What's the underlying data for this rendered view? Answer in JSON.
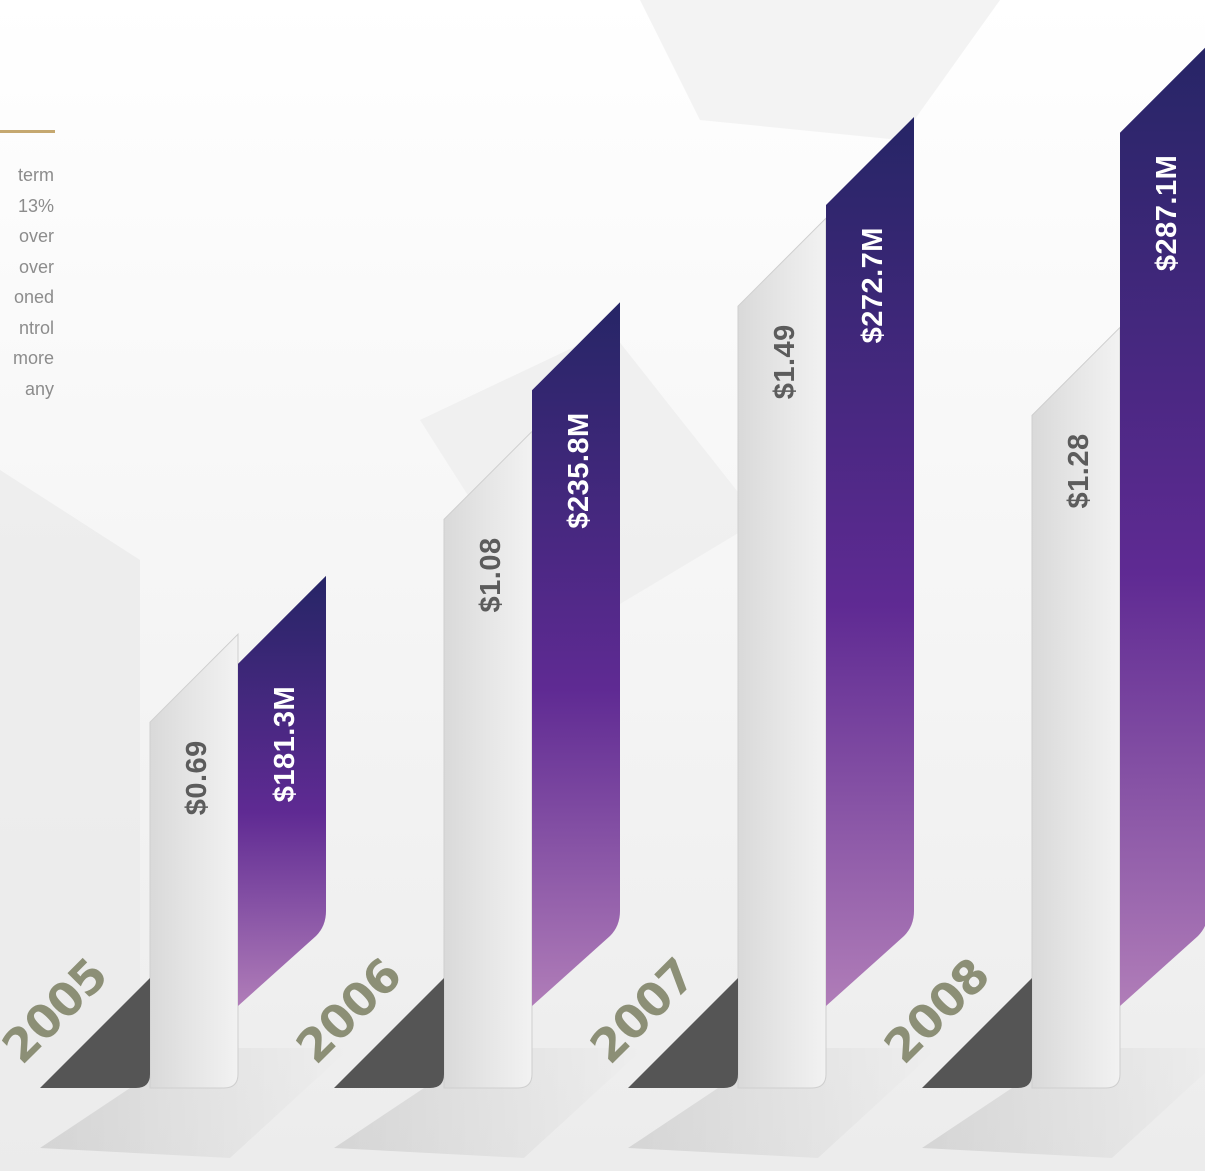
{
  "intro": {
    "lines": [
      "term",
      "13%",
      "over",
      "over",
      "oned",
      "ntrol",
      "more",
      "any"
    ]
  },
  "colors": {
    "revenue_top": "#262566",
    "revenue_mid": "#5f2a93",
    "revenue_bottom": "#b07db8",
    "eps_bar": "#e6e6e6",
    "year_text": "#8c8f76",
    "year_tab": "#555555",
    "eps_text": "#5c5c5c",
    "revenue_text": "#ffffff",
    "accent_rule": "#c5a870"
  },
  "chart_data": {
    "type": "bar",
    "categories": [
      "2005",
      "2006",
      "2007",
      "2008"
    ],
    "series": [
      {
        "values": [
          0.69,
          1.08,
          1.49,
          1.28
        ],
        "labels": [
          "$0.69",
          "$1.08",
          "$1.49",
          "$1.28"
        ]
      },
      {
        "values": [
          181.3,
          235.8,
          272.7,
          287.1
        ],
        "labels": [
          "$181.3M",
          "$235.8M",
          "$272.7M",
          "$287.1M"
        ]
      }
    ]
  }
}
